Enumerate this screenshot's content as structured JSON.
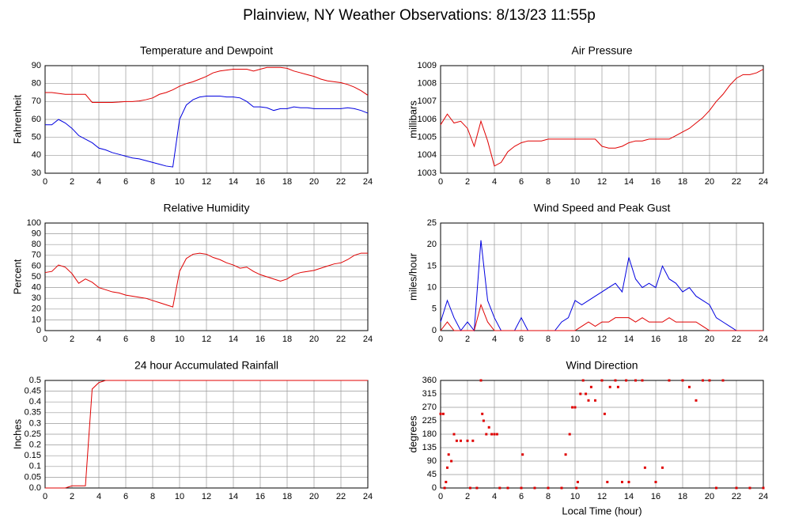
{
  "title": "Plainview, NY Weather Observations: 8/13/23 11:55p",
  "chart_data": [
    {
      "type": "line",
      "title": "Temperature and Dewpoint",
      "ylabel": "Fahrenheit",
      "x": [
        0,
        0.5,
        1,
        1.5,
        2,
        2.5,
        3,
        3.5,
        4,
        4.5,
        5,
        5.5,
        6,
        6.5,
        7,
        7.5,
        8,
        8.5,
        9,
        9.5,
        10,
        10.5,
        11,
        11.5,
        12,
        12.5,
        13,
        13.5,
        14,
        14.5,
        15,
        15.5,
        16,
        16.5,
        17,
        17.5,
        18,
        18.5,
        19,
        19.5,
        20,
        20.5,
        21,
        21.5,
        22,
        22.5,
        23,
        23.5,
        24
      ],
      "xlim": [
        0,
        24
      ],
      "xticks": [
        0,
        2,
        4,
        6,
        8,
        10,
        12,
        14,
        16,
        18,
        20,
        22,
        24
      ],
      "ylim": [
        30,
        90
      ],
      "yticks": [
        30,
        40,
        50,
        60,
        70,
        80,
        90
      ],
      "grid": true,
      "series": [
        {
          "color": "#e00000",
          "values": [
            75,
            75,
            74.5,
            74,
            74,
            74,
            74,
            69.5,
            69.5,
            69.5,
            69.5,
            69.7,
            70,
            70,
            70.3,
            71,
            72,
            74,
            75,
            76.5,
            78.5,
            80,
            81,
            82.5,
            84,
            86,
            87,
            87.5,
            88,
            88,
            88,
            87,
            88,
            89,
            89,
            89,
            88.5,
            87,
            86,
            85,
            84,
            82.5,
            81.5,
            81,
            80.5,
            79.5,
            78,
            76,
            73.5
          ]
        },
        {
          "color": "#0000e0",
          "values": [
            57,
            57,
            60,
            58,
            55,
            51,
            49,
            47,
            44,
            43,
            41.5,
            40.5,
            39.5,
            38.5,
            38,
            37,
            36,
            35,
            34,
            33.5,
            60,
            68,
            71,
            72.5,
            73,
            73,
            73,
            72.5,
            72.5,
            72,
            70,
            67,
            67,
            66.5,
            65,
            66,
            66,
            67,
            66.5,
            66.5,
            66,
            66,
            66,
            66,
            66,
            66.5,
            66,
            65,
            63.5
          ]
        }
      ]
    },
    {
      "type": "line",
      "title": "Air Pressure",
      "ylabel": "millibars",
      "x": [
        0,
        0.5,
        1,
        1.5,
        2,
        2.5,
        3,
        3.5,
        4,
        4.5,
        5,
        5.5,
        6,
        6.5,
        7,
        7.5,
        8,
        8.5,
        9,
        9.5,
        10,
        10.5,
        11,
        11.5,
        12,
        12.5,
        13,
        13.5,
        14,
        14.5,
        15,
        15.5,
        16,
        16.5,
        17,
        17.5,
        18,
        18.5,
        19,
        19.5,
        20,
        20.5,
        21,
        21.5,
        22,
        22.5,
        23,
        23.5,
        24
      ],
      "xlim": [
        0,
        24
      ],
      "xticks": [
        0,
        2,
        4,
        6,
        8,
        10,
        12,
        14,
        16,
        18,
        20,
        22,
        24
      ],
      "ylim": [
        1003,
        1009
      ],
      "yticks": [
        1003,
        1004,
        1005,
        1006,
        1007,
        1008,
        1009
      ],
      "grid": true,
      "series": [
        {
          "color": "#e00000",
          "values": [
            1005.7,
            1006.3,
            1005.8,
            1005.9,
            1005.5,
            1004.5,
            1005.9,
            1004.8,
            1003.4,
            1003.6,
            1004.2,
            1004.5,
            1004.7,
            1004.8,
            1004.8,
            1004.8,
            1004.9,
            1004.9,
            1004.9,
            1004.9,
            1004.9,
            1004.9,
            1004.9,
            1004.9,
            1004.5,
            1004.4,
            1004.4,
            1004.5,
            1004.7,
            1004.8,
            1004.8,
            1004.9,
            1004.9,
            1004.9,
            1004.9,
            1005.1,
            1005.3,
            1005.5,
            1005.8,
            1006.1,
            1006.5,
            1007.0,
            1007.4,
            1007.9,
            1008.3,
            1008.5,
            1008.5,
            1008.6,
            1008.8
          ]
        }
      ]
    },
    {
      "type": "line",
      "title": "Relative Humidity",
      "ylabel": "Percent",
      "x": [
        0,
        0.5,
        1,
        1.5,
        2,
        2.5,
        3,
        3.5,
        4,
        4.5,
        5,
        5.5,
        6,
        6.5,
        7,
        7.5,
        8,
        8.5,
        9,
        9.5,
        10,
        10.5,
        11,
        11.5,
        12,
        12.5,
        13,
        13.5,
        14,
        14.5,
        15,
        15.5,
        16,
        16.5,
        17,
        17.5,
        18,
        18.5,
        19,
        19.5,
        20,
        20.5,
        21,
        21.5,
        22,
        22.5,
        23,
        23.5,
        24
      ],
      "xlim": [
        0,
        24
      ],
      "xticks": [
        0,
        2,
        4,
        6,
        8,
        10,
        12,
        14,
        16,
        18,
        20,
        22,
        24
      ],
      "ylim": [
        0,
        100
      ],
      "yticks": [
        0,
        10,
        20,
        30,
        40,
        50,
        60,
        70,
        80,
        90,
        100
      ],
      "grid": true,
      "series": [
        {
          "color": "#e00000",
          "values": [
            54,
            55,
            61,
            59,
            53,
            44,
            48,
            45,
            40,
            38,
            36,
            35,
            33,
            32,
            31,
            30,
            28,
            26,
            24,
            22,
            55,
            67,
            71,
            72,
            71,
            68,
            66,
            63,
            61,
            58,
            59,
            55,
            52,
            50,
            48,
            46,
            48,
            52,
            54,
            55,
            56,
            58,
            60,
            62,
            63,
            66,
            70,
            72,
            72
          ]
        }
      ]
    },
    {
      "type": "line",
      "title": "Wind Speed and Peak Gust",
      "ylabel": "miles/hour",
      "x": [
        0,
        0.5,
        1,
        1.5,
        2,
        2.5,
        3,
        3.5,
        4,
        4.5,
        5,
        5.5,
        6,
        6.5,
        7,
        7.5,
        8,
        8.5,
        9,
        9.5,
        10,
        10.5,
        11,
        11.5,
        12,
        12.5,
        13,
        13.5,
        14,
        14.5,
        15,
        15.5,
        16,
        16.5,
        17,
        17.5,
        18,
        18.5,
        19,
        19.5,
        20,
        20.5,
        21,
        21.5,
        22,
        22.5,
        23,
        23.5,
        24
      ],
      "xlim": [
        0,
        24
      ],
      "xticks": [
        0,
        2,
        4,
        6,
        8,
        10,
        12,
        14,
        16,
        18,
        20,
        22,
        24
      ],
      "ylim": [
        0,
        25
      ],
      "yticks": [
        0,
        5,
        10,
        15,
        20,
        25
      ],
      "grid": true,
      "series": [
        {
          "color": "#0000e0",
          "values": [
            2,
            7,
            3,
            0,
            2,
            0,
            21,
            7,
            3,
            0,
            0,
            0,
            3,
            0,
            0,
            0,
            0,
            0,
            2,
            3,
            7,
            6,
            7,
            8,
            9,
            10,
            11,
            9,
            17,
            12,
            10,
            11,
            10,
            15,
            12,
            11,
            9,
            10,
            8,
            7,
            6,
            3,
            2,
            1,
            0,
            0,
            0,
            0,
            0
          ]
        },
        {
          "color": "#e00000",
          "values": [
            0,
            2,
            0,
            0,
            0,
            0,
            6,
            2,
            0,
            0,
            0,
            0,
            0,
            0,
            0,
            0,
            0,
            0,
            0,
            0,
            0,
            1,
            2,
            1,
            2,
            2,
            3,
            3,
            3,
            2,
            3,
            2,
            2,
            2,
            3,
            2,
            2,
            2,
            2,
            1,
            0,
            0,
            0,
            0,
            0,
            0,
            0,
            0,
            0
          ]
        }
      ]
    },
    {
      "type": "line",
      "title": "24 hour Accumulated Rainfall",
      "ylabel": "Inches",
      "x": [
        0,
        0.5,
        1,
        1.5,
        2,
        2.5,
        3,
        3.5,
        4,
        4.5,
        5,
        5.5,
        6,
        6.5,
        7,
        7.5,
        8,
        8.5,
        9,
        9.5,
        10,
        10.5,
        11,
        11.5,
        12,
        12.5,
        13,
        13.5,
        14,
        14.5,
        15,
        15.5,
        16,
        16.5,
        17,
        17.5,
        18,
        18.5,
        19,
        19.5,
        20,
        20.5,
        21,
        21.5,
        22,
        22.5,
        23,
        23.5,
        24
      ],
      "xlim": [
        0,
        24
      ],
      "xticks": [
        0,
        2,
        4,
        6,
        8,
        10,
        12,
        14,
        16,
        18,
        20,
        22,
        24
      ],
      "ylim": [
        0,
        0.5
      ],
      "yticks": [
        {
          "value": 0,
          "label": "0.0"
        },
        0.05,
        0.1,
        0.15,
        0.2,
        0.25,
        0.3,
        0.35,
        0.4,
        0.45,
        0.5
      ],
      "grid": true,
      "series": [
        {
          "color": "#e00000",
          "values": [
            0,
            0,
            0,
            0,
            0.01,
            0.01,
            0.01,
            0.46,
            0.49,
            0.5,
            0.5,
            0.5,
            0.5,
            0.5,
            0.5,
            0.5,
            0.5,
            0.5,
            0.5,
            0.5,
            0.5,
            0.5,
            0.5,
            0.5,
            0.5,
            0.5,
            0.5,
            0.5,
            0.5,
            0.5,
            0.5,
            0.5,
            0.5,
            0.5,
            0.5,
            0.5,
            0.5,
            0.5,
            0.5,
            0.5,
            0.5,
            0.5,
            0.5,
            0.5,
            0.5,
            0.5,
            0.5,
            0.5,
            0.5
          ]
        }
      ]
    },
    {
      "type": "scatter",
      "title": "Wind Direction",
      "ylabel": "degrees",
      "xlabel": "Local Time (hour)",
      "x": [
        0,
        0.2,
        0.3,
        0.4,
        0.5,
        0.6,
        0.8,
        1,
        1.2,
        1.5,
        2,
        2.2,
        2.4,
        2.7,
        3,
        3.1,
        3.2,
        3.4,
        3.6,
        3.8,
        4,
        4.2,
        4.4,
        5,
        6,
        6.1,
        7,
        8,
        9,
        9.3,
        9.6,
        9.8,
        10,
        10.1,
        10.2,
        10.4,
        10.6,
        10.8,
        11,
        11.2,
        11.5,
        12,
        12.2,
        12.4,
        12.6,
        13,
        13.2,
        13.5,
        13.8,
        14,
        14.5,
        15,
        15.2,
        16,
        16.5,
        17,
        18,
        18.5,
        19,
        19.5,
        20,
        20.5,
        21,
        22,
        23,
        24
      ],
      "values": [
        248,
        248,
        0,
        20,
        68,
        112,
        90,
        180,
        158,
        158,
        158,
        0,
        158,
        0,
        360,
        248,
        225,
        180,
        203,
        180,
        180,
        180,
        0,
        0,
        0,
        112,
        0,
        0,
        0,
        112,
        180,
        270,
        270,
        0,
        20,
        315,
        360,
        315,
        293,
        338,
        293,
        360,
        248,
        20,
        338,
        360,
        338,
        20,
        360,
        20,
        360,
        360,
        68,
        20,
        68,
        360,
        360,
        338,
        293,
        360,
        360,
        0,
        360,
        0,
        0,
        0
      ],
      "color": "#e00000",
      "xlim": [
        0,
        24
      ],
      "xticks": [
        0,
        2,
        4,
        6,
        8,
        10,
        12,
        14,
        16,
        18,
        20,
        22,
        24
      ],
      "ylim": [
        0,
        360
      ],
      "yticks": [
        0,
        45,
        90,
        135,
        180,
        225,
        270,
        315,
        360
      ],
      "grid": true
    }
  ]
}
